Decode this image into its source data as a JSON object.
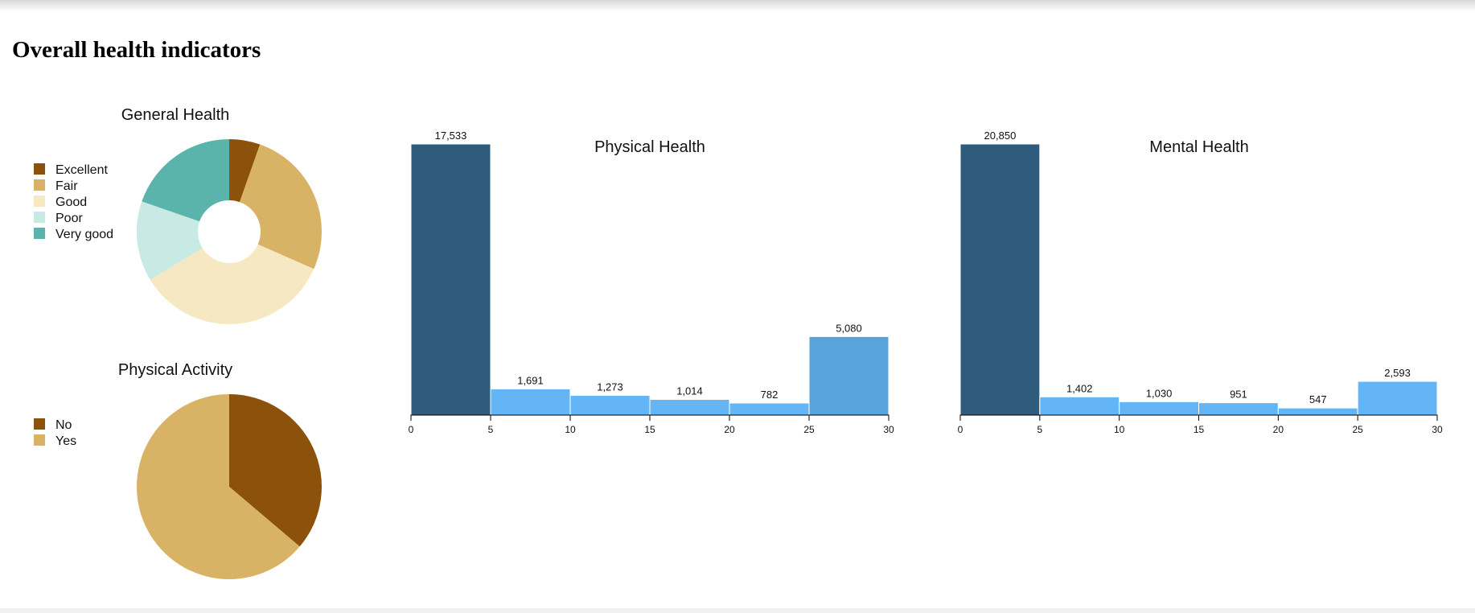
{
  "header": {
    "title": "Overall health indicators"
  },
  "chart_data": [
    {
      "type": "donut",
      "title": "General Health",
      "categories": [
        "Excellent",
        "Fair",
        "Good",
        "Poor",
        "Very good"
      ],
      "values": [
        5.4,
        26.2,
        34.7,
        14.0,
        19.7
      ],
      "colors": [
        "#8c510a",
        "#d8b365",
        "#f6e8c3",
        "#c7eae5",
        "#5ab4ac"
      ]
    },
    {
      "type": "pie",
      "title": "Physical Activity",
      "categories": [
        "No",
        "Yes"
      ],
      "values": [
        36.2,
        63.8
      ],
      "colors": [
        "#8c510a",
        "#d8b365"
      ]
    },
    {
      "type": "histogram",
      "title": "Physical Health",
      "bins": [
        0,
        5,
        10,
        15,
        20,
        25,
        30
      ],
      "values": [
        17533,
        1691,
        1273,
        1014,
        782,
        5080
      ],
      "value_labels": [
        "17,533",
        "1,691",
        "1,273",
        "1,014",
        "782",
        "5,080"
      ],
      "colors": [
        "#2f5b7c",
        "#64b5f6",
        "#64b5f6",
        "#64b5f6",
        "#64b5f6",
        "#58a3dc"
      ],
      "xlim": [
        0,
        30
      ],
      "xticks": [
        0,
        5,
        10,
        15,
        20,
        25,
        30
      ]
    },
    {
      "type": "histogram",
      "title": "Mental Health",
      "bins": [
        0,
        5,
        10,
        15,
        20,
        25,
        30
      ],
      "values": [
        20850,
        1402,
        1030,
        951,
        547,
        2593
      ],
      "value_labels": [
        "20,850",
        "1,402",
        "1,030",
        "951",
        "547",
        "2,593"
      ],
      "colors": [
        "#2f5b7c",
        "#64b5f6",
        "#64b5f6",
        "#64b5f6",
        "#64b5f6",
        "#64b5f6"
      ],
      "xlim": [
        0,
        30
      ],
      "xticks": [
        0,
        5,
        10,
        15,
        20,
        25,
        30
      ]
    }
  ]
}
